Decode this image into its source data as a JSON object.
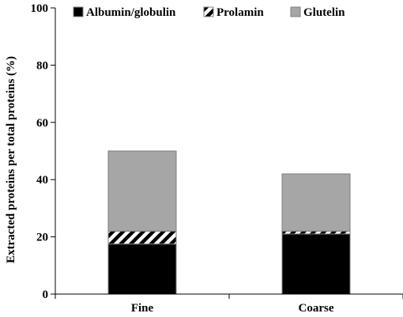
{
  "chart_data": {
    "type": "bar",
    "stacked": true,
    "categories": [
      "Fine",
      "Coarse"
    ],
    "series": [
      {
        "name": "Albumin/globulin",
        "values": [
          17.5,
          21.0
        ],
        "color": "#000000",
        "pattern": "solid"
      },
      {
        "name": "Prolamin",
        "values": [
          4.5,
          1.0
        ],
        "color": "#000000",
        "pattern": "diagonal-hatch"
      },
      {
        "name": "Glutelin",
        "values": [
          28.0,
          20.0
        ],
        "color": "#a6a6a6",
        "pattern": "solid"
      }
    ],
    "xlabel": "",
    "ylabel": "Extracted proteins per total proteins (%)",
    "ylim": [
      0,
      100
    ],
    "yticks": [
      0,
      20,
      40,
      60,
      80,
      100
    ],
    "grid": false,
    "legend_position": "top"
  }
}
